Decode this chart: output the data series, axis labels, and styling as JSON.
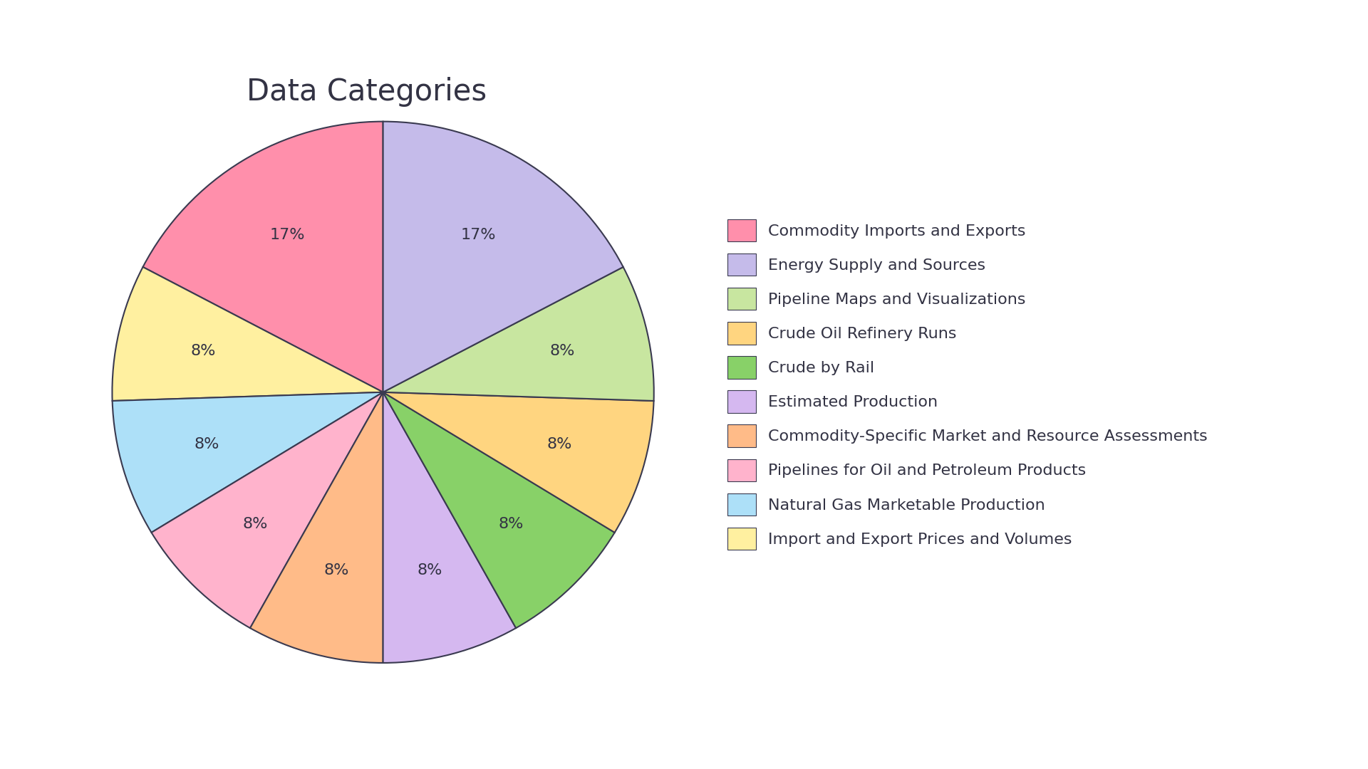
{
  "title": "Data Categories",
  "labels": [
    "Commodity Imports and Exports",
    "Energy Supply and Sources",
    "Pipeline Maps and Visualizations",
    "Crude Oil Refinery Runs",
    "Crude by Rail",
    "Estimated Production",
    "Commodity-Specific Market and Resource Assessments",
    "Pipelines for Oil and Petroleum Products",
    "Natural Gas Marketable Production",
    "Import and Export Prices and Volumes"
  ],
  "values": [
    17,
    17,
    8,
    8,
    8,
    8,
    8,
    8,
    8,
    8
  ],
  "colors": [
    "#FF8FAB",
    "#C5BBEA",
    "#C8E6A0",
    "#FFD580",
    "#88D168",
    "#D5B8F0",
    "#FFBB88",
    "#FFB3CC",
    "#ADE0F8",
    "#FFF0A0"
  ],
  "pie_order": [
    0,
    9,
    8,
    7,
    6,
    5,
    4,
    3,
    2,
    1
  ],
  "startangle": 90,
  "background_color": "#FFFFFF",
  "title_fontsize": 30,
  "label_fontsize": 16,
  "legend_fontsize": 16,
  "text_color": "#333344",
  "edge_color": "#3a3a50"
}
